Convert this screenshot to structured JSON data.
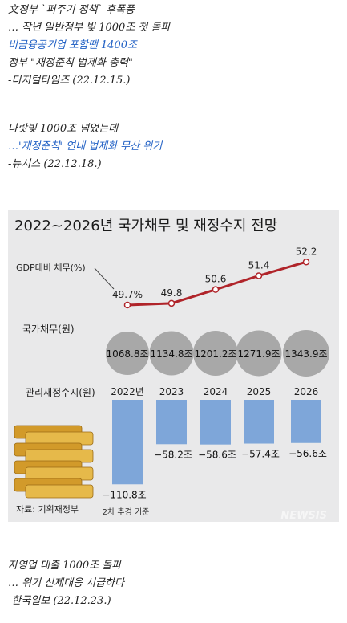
{
  "quotes": [
    {
      "lines": [
        {
          "text": "文정부 `퍼주기 정책` 후폭풍",
          "color": "#222222"
        },
        {
          "text": "… 작년 일반정부 빚 1000조 첫 돌파",
          "color": "#222222"
        },
        {
          "text": "비금융공기업 포함땐 1400조",
          "color": "#1f5fc4"
        },
        {
          "text": "정부 \"재정준칙 법제화 총력\"",
          "color": "#222222"
        },
        {
          "text": "-디지털타임즈 (22.12.15.)",
          "color": "#222222"
        }
      ]
    },
    {
      "lines": [
        {
          "text": "나랏빚 1000조 넘었는데",
          "color": "#222222"
        },
        {
          "text": "…'재정준칙' 연내 법제화 무산 위기",
          "color": "#1f5fc4"
        },
        {
          "text": "-뉴시스 (22.12.18.)",
          "color": "#222222"
        }
      ]
    },
    {
      "lines": [
        {
          "text": "자영업 대출 1000조 돌파",
          "color": "#222222"
        },
        {
          "text": "… 위기 선제대응 시급하다",
          "color": "#222222"
        },
        {
          "text": "-한국일보 (22.12.23.)",
          "color": "#222222"
        }
      ]
    }
  ],
  "chart_data": {
    "type": "line",
    "title": "2022~2026년 국가채무 및 재정수지 전망",
    "categories": [
      "2022년",
      "2023",
      "2024",
      "2025",
      "2026"
    ],
    "series": [
      {
        "name": "GDP대비 채무(%)",
        "values": [
          49.7,
          49.8,
          50.6,
          51.4,
          52.2
        ],
        "labels": [
          "49.7%",
          "49.8",
          "50.6",
          "51.4",
          "52.2"
        ],
        "color": "#b0242a"
      },
      {
        "name": "국가채무(원)",
        "values": [
          1068.8,
          1134.8,
          1201.2,
          1271.9,
          1343.9
        ],
        "labels": [
          "1068.8조",
          "1134.8조",
          "1201.2조",
          "1271.9조",
          "1343.9조"
        ],
        "color": "#a8a8a8"
      },
      {
        "name": "관리재정수지(원)",
        "values": [
          -110.8,
          -58.2,
          -58.6,
          -57.4,
          -56.6
        ],
        "labels": [
          "−110.8조",
          "−58.2조",
          "−58.6조",
          "−57.4조",
          "−56.6조"
        ],
        "color": "#7ea6d9"
      }
    ],
    "note": "2차 추경 기준",
    "source": "자료: 기획재정부",
    "watermark": "NEWSIS"
  }
}
